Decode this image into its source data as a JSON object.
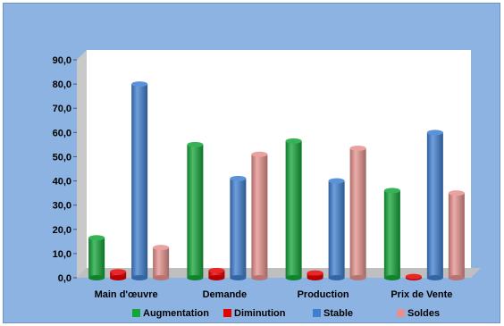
{
  "chart_data": {
    "type": "bar",
    "categories": [
      "Main d'œuvre",
      "Demande",
      "Production",
      "Prix de Vente"
    ],
    "series": [
      {
        "name": "Augmentation",
        "values": [
          16.5,
          55.0,
          56.5,
          36.0
        ],
        "color": "#13a538"
      },
      {
        "name": "Diminution",
        "values": [
          2.5,
          3.0,
          2.0,
          0.5
        ],
        "color": "#e60000"
      },
      {
        "name": "Stable",
        "values": [
          80.0,
          41.0,
          40.0,
          60.0
        ],
        "color": "#3f7fd0"
      },
      {
        "name": "Soldes",
        "values": [
          12.5,
          51.0,
          53.5,
          35.0
        ],
        "color": "#e5918e"
      }
    ],
    "ylim": [
      0,
      90
    ],
    "yticks": [
      "0,0",
      "10,0",
      "20,0",
      "30,0",
      "40,0",
      "50,0",
      "60,0",
      "70,0",
      "80,0",
      "90,0"
    ],
    "legend_position": "bottom",
    "grid": false,
    "title": "",
    "xlabel": "",
    "ylabel": ""
  }
}
